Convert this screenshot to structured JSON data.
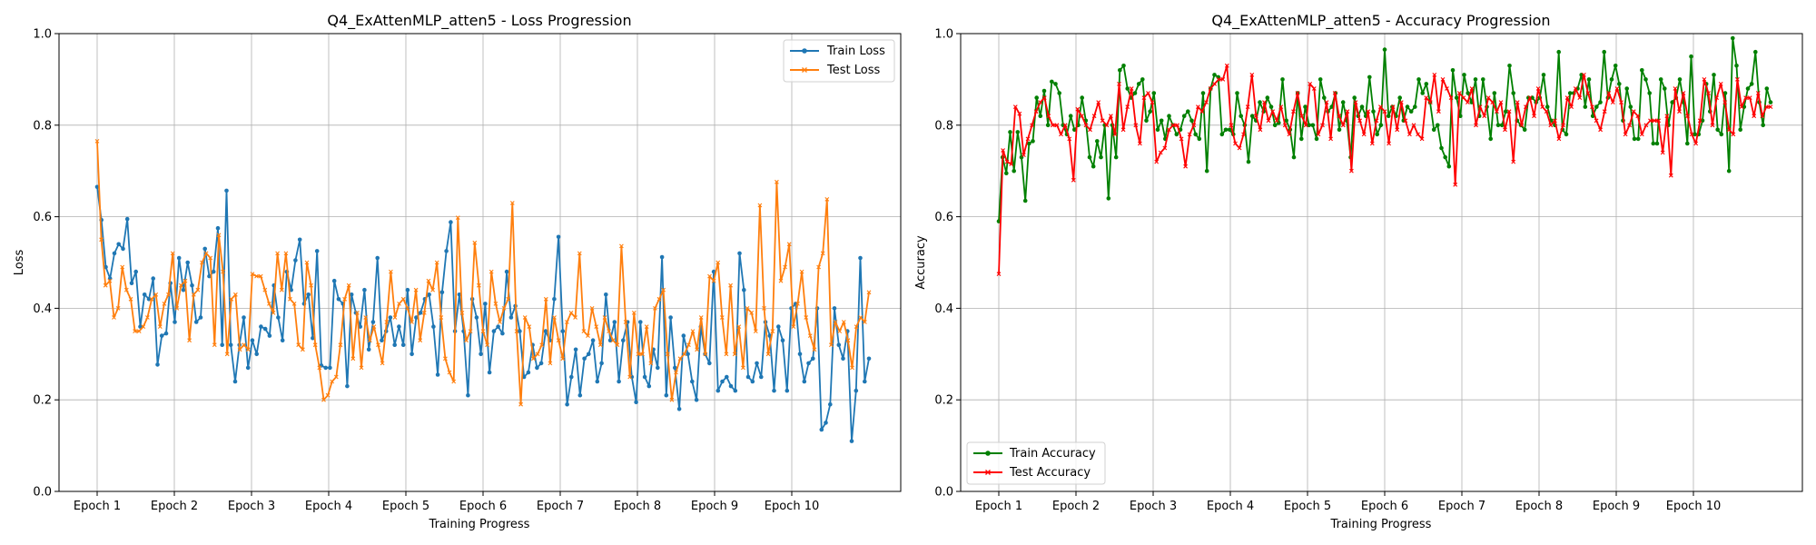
{
  "colors": {
    "train_loss": "#1f77b4",
    "test_loss": "#ff7f0e",
    "train_acc": "#008000",
    "test_acc": "#ff0000",
    "grid": "#b0b0b0"
  },
  "chart_data": [
    {
      "type": "line",
      "title": "Q4_ExAttenMLP_atten5 - Loss Progression",
      "xlabel": "Training Progress",
      "ylabel": "Loss",
      "ylim": [
        0.0,
        1.0
      ],
      "yticks": [
        "0.0",
        "0.2",
        "0.4",
        "0.6",
        "0.8",
        "1.0"
      ],
      "xticks": [
        "Epoch 1",
        "Epoch 2",
        "Epoch 3",
        "Epoch 4",
        "Epoch 5",
        "Epoch 6",
        "Epoch 7",
        "Epoch 8",
        "Epoch 9",
        "Epoch 10"
      ],
      "legend_position": "top-right",
      "grid": true,
      "series": [
        {
          "name": "Train Loss",
          "color": "#1f77b4",
          "marker": "circle",
          "values": [
            0.665,
            0.593,
            0.49,
            0.465,
            0.52,
            0.54,
            0.53,
            0.595,
            0.455,
            0.48,
            0.36,
            0.43,
            0.42,
            0.465,
            0.277,
            0.34,
            0.345,
            0.455,
            0.37,
            0.51,
            0.44,
            0.5,
            0.45,
            0.37,
            0.38,
            0.53,
            0.47,
            0.48,
            0.575,
            0.32,
            0.657,
            0.32,
            0.24,
            0.32,
            0.38,
            0.27,
            0.33,
            0.3,
            0.36,
            0.355,
            0.34,
            0.45,
            0.38,
            0.33,
            0.48,
            0.44,
            0.505,
            0.55,
            0.41,
            0.43,
            0.335,
            0.525,
            0.275,
            0.27,
            0.27,
            0.46,
            0.42,
            0.41,
            0.23,
            0.43,
            0.39,
            0.36,
            0.44,
            0.31,
            0.37,
            0.51,
            0.33,
            0.35,
            0.38,
            0.32,
            0.36,
            0.32,
            0.44,
            0.3,
            0.38,
            0.39,
            0.42,
            0.43,
            0.36,
            0.255,
            0.435,
            0.525,
            0.588,
            0.35,
            0.43,
            0.35,
            0.21,
            0.42,
            0.38,
            0.3,
            0.41,
            0.26,
            0.35,
            0.36,
            0.345,
            0.48,
            0.38,
            0.405,
            0.35,
            0.25,
            0.26,
            0.32,
            0.27,
            0.28,
            0.35,
            0.33,
            0.42,
            0.556,
            0.35,
            0.19,
            0.25,
            0.31,
            0.21,
            0.29,
            0.3,
            0.33,
            0.24,
            0.28,
            0.43,
            0.33,
            0.37,
            0.24,
            0.33,
            0.37,
            0.25,
            0.195,
            0.37,
            0.25,
            0.23,
            0.31,
            0.27,
            0.512,
            0.21,
            0.38,
            0.27,
            0.18,
            0.34,
            0.3,
            0.24,
            0.2,
            0.36,
            0.3,
            0.28,
            0.48,
            0.22,
            0.24,
            0.25,
            0.23,
            0.22,
            0.52,
            0.44,
            0.25,
            0.24,
            0.28,
            0.25,
            0.37,
            0.34,
            0.22,
            0.36,
            0.33,
            0.22,
            0.4,
            0.41,
            0.3,
            0.24,
            0.28,
            0.29,
            0.4,
            0.135,
            0.15,
            0.19,
            0.4,
            0.32,
            0.29,
            0.35,
            0.11,
            0.22,
            0.51,
            0.24,
            0.29
          ]
        },
        {
          "name": "Test Loss",
          "color": "#ff7f0e",
          "marker": "x",
          "values": [
            0.765,
            0.55,
            0.45,
            0.46,
            0.38,
            0.4,
            0.49,
            0.44,
            0.42,
            0.35,
            0.35,
            0.36,
            0.38,
            0.42,
            0.43,
            0.36,
            0.41,
            0.43,
            0.52,
            0.4,
            0.45,
            0.46,
            0.33,
            0.43,
            0.44,
            0.5,
            0.52,
            0.51,
            0.32,
            0.56,
            0.48,
            0.3,
            0.42,
            0.43,
            0.31,
            0.32,
            0.31,
            0.475,
            0.47,
            0.47,
            0.44,
            0.41,
            0.39,
            0.52,
            0.44,
            0.52,
            0.42,
            0.41,
            0.32,
            0.31,
            0.5,
            0.45,
            0.32,
            0.27,
            0.2,
            0.21,
            0.24,
            0.25,
            0.32,
            0.42,
            0.45,
            0.29,
            0.39,
            0.27,
            0.38,
            0.33,
            0.36,
            0.32,
            0.28,
            0.37,
            0.48,
            0.38,
            0.41,
            0.42,
            0.4,
            0.37,
            0.44,
            0.33,
            0.39,
            0.46,
            0.44,
            0.5,
            0.38,
            0.29,
            0.26,
            0.24,
            0.598,
            0.39,
            0.33,
            0.35,
            0.543,
            0.45,
            0.35,
            0.32,
            0.48,
            0.41,
            0.37,
            0.4,
            0.42,
            0.63,
            0.35,
            0.19,
            0.38,
            0.36,
            0.29,
            0.3,
            0.32,
            0.42,
            0.28,
            0.38,
            0.33,
            0.29,
            0.37,
            0.39,
            0.38,
            0.52,
            0.35,
            0.34,
            0.4,
            0.36,
            0.32,
            0.38,
            0.35,
            0.33,
            0.32,
            0.536,
            0.37,
            0.25,
            0.39,
            0.3,
            0.3,
            0.36,
            0.28,
            0.4,
            0.42,
            0.44,
            0.3,
            0.2,
            0.26,
            0.29,
            0.3,
            0.32,
            0.35,
            0.31,
            0.38,
            0.3,
            0.47,
            0.46,
            0.5,
            0.38,
            0.3,
            0.45,
            0.3,
            0.36,
            0.27,
            0.4,
            0.39,
            0.35,
            0.625,
            0.4,
            0.3,
            0.35,
            0.676,
            0.46,
            0.49,
            0.54,
            0.36,
            0.41,
            0.48,
            0.38,
            0.34,
            0.31,
            0.49,
            0.52,
            0.638,
            0.32,
            0.37,
            0.35,
            0.37,
            0.33,
            0.27,
            0.36,
            0.38,
            0.37,
            0.435
          ]
        }
      ]
    },
    {
      "type": "line",
      "title": "Q4_ExAttenMLP_atten5 - Accuracy Progression",
      "xlabel": "Training Progress",
      "ylabel": "Accuracy",
      "ylim": [
        0.0,
        1.0
      ],
      "yticks": [
        "0.0",
        "0.2",
        "0.4",
        "0.6",
        "0.8",
        "1.0"
      ],
      "xticks": [
        "Epoch 1",
        "Epoch 2",
        "Epoch 3",
        "Epoch 4",
        "Epoch 5",
        "Epoch 6",
        "Epoch 7",
        "Epoch 8",
        "Epoch 9",
        "Epoch 10"
      ],
      "legend_position": "bottom-left",
      "grid": true,
      "series": [
        {
          "name": "Train Accuracy",
          "color": "#008000",
          "marker": "circle",
          "values": [
            0.59,
            0.73,
            0.695,
            0.785,
            0.7,
            0.785,
            0.73,
            0.635,
            0.76,
            0.765,
            0.86,
            0.82,
            0.875,
            0.8,
            0.895,
            0.89,
            0.87,
            0.8,
            0.78,
            0.82,
            0.79,
            0.8,
            0.86,
            0.81,
            0.73,
            0.71,
            0.765,
            0.73,
            0.8,
            0.64,
            0.8,
            0.73,
            0.92,
            0.93,
            0.88,
            0.86,
            0.87,
            0.89,
            0.9,
            0.81,
            0.83,
            0.87,
            0.79,
            0.81,
            0.77,
            0.82,
            0.8,
            0.78,
            0.79,
            0.82,
            0.83,
            0.81,
            0.78,
            0.77,
            0.87,
            0.7,
            0.88,
            0.91,
            0.905,
            0.78,
            0.79,
            0.79,
            0.78,
            0.87,
            0.82,
            0.8,
            0.72,
            0.82,
            0.81,
            0.85,
            0.83,
            0.86,
            0.84,
            0.8,
            0.805,
            0.9,
            0.81,
            0.79,
            0.73,
            0.87,
            0.77,
            0.84,
            0.8,
            0.8,
            0.77,
            0.9,
            0.86,
            0.83,
            0.84,
            0.87,
            0.79,
            0.85,
            0.81,
            0.73,
            0.86,
            0.82,
            0.84,
            0.82,
            0.905,
            0.83,
            0.78,
            0.8,
            0.965,
            0.82,
            0.84,
            0.82,
            0.86,
            0.81,
            0.84,
            0.83,
            0.84,
            0.9,
            0.87,
            0.89,
            0.85,
            0.79,
            0.8,
            0.75,
            0.73,
            0.71,
            0.92,
            0.86,
            0.82,
            0.91,
            0.87,
            0.85,
            0.9,
            0.82,
            0.9,
            0.84,
            0.77,
            0.87,
            0.8,
            0.8,
            0.83,
            0.93,
            0.87,
            0.81,
            0.8,
            0.79,
            0.86,
            0.86,
            0.85,
            0.86,
            0.91,
            0.84,
            0.81,
            0.8,
            0.96,
            0.79,
            0.78,
            0.87,
            0.87,
            0.88,
            0.91,
            0.84,
            0.9,
            0.82,
            0.84,
            0.85,
            0.96,
            0.86,
            0.9,
            0.93,
            0.89,
            0.81,
            0.88,
            0.84,
            0.77,
            0.77,
            0.92,
            0.9,
            0.87,
            0.76,
            0.76,
            0.9,
            0.88,
            0.8,
            0.85,
            0.86,
            0.9,
            0.85,
            0.76,
            0.95,
            0.78,
            0.78,
            0.81,
            0.89,
            0.83,
            0.91,
            0.79,
            0.78,
            0.87,
            0.7,
            0.99,
            0.93,
            0.79,
            0.84,
            0.88,
            0.89,
            0.96,
            0.85,
            0.8,
            0.88,
            0.85
          ]
        },
        {
          "name": "Test Accuracy",
          "color": "#ff0000",
          "marker": "x",
          "values": [
            0.475,
            0.745,
            0.72,
            0.715,
            0.84,
            0.825,
            0.735,
            0.77,
            0.8,
            0.83,
            0.85,
            0.86,
            0.82,
            0.8,
            0.8,
            0.78,
            0.8,
            0.77,
            0.68,
            0.835,
            0.82,
            0.8,
            0.79,
            0.82,
            0.85,
            0.81,
            0.8,
            0.82,
            0.78,
            0.89,
            0.79,
            0.84,
            0.88,
            0.8,
            0.76,
            0.86,
            0.87,
            0.85,
            0.72,
            0.74,
            0.75,
            0.79,
            0.8,
            0.8,
            0.77,
            0.71,
            0.78,
            0.8,
            0.84,
            0.83,
            0.85,
            0.88,
            0.89,
            0.9,
            0.9,
            0.93,
            0.8,
            0.76,
            0.75,
            0.78,
            0.84,
            0.91,
            0.82,
            0.79,
            0.85,
            0.81,
            0.83,
            0.81,
            0.84,
            0.8,
            0.78,
            0.83,
            0.87,
            0.82,
            0.8,
            0.89,
            0.88,
            0.78,
            0.8,
            0.85,
            0.77,
            0.87,
            0.82,
            0.8,
            0.83,
            0.7,
            0.85,
            0.81,
            0.78,
            0.83,
            0.76,
            0.81,
            0.84,
            0.83,
            0.76,
            0.84,
            0.79,
            0.85,
            0.81,
            0.78,
            0.8,
            0.78,
            0.77,
            0.86,
            0.85,
            0.91,
            0.83,
            0.9,
            0.88,
            0.86,
            0.67,
            0.87,
            0.86,
            0.85,
            0.88,
            0.8,
            0.84,
            0.82,
            0.86,
            0.85,
            0.83,
            0.85,
            0.79,
            0.83,
            0.72,
            0.85,
            0.8,
            0.84,
            0.86,
            0.82,
            0.88,
            0.84,
            0.83,
            0.8,
            0.81,
            0.77,
            0.8,
            0.86,
            0.84,
            0.88,
            0.86,
            0.91,
            0.87,
            0.84,
            0.81,
            0.79,
            0.83,
            0.87,
            0.85,
            0.88,
            0.85,
            0.78,
            0.8,
            0.83,
            0.82,
            0.78,
            0.8,
            0.81,
            0.81,
            0.81,
            0.74,
            0.82,
            0.69,
            0.88,
            0.83,
            0.87,
            0.82,
            0.78,
            0.76,
            0.81,
            0.9,
            0.87,
            0.8,
            0.86,
            0.89,
            0.85,
            0.79,
            0.78,
            0.9,
            0.84,
            0.86,
            0.86,
            0.82,
            0.87,
            0.82,
            0.84,
            0.84
          ]
        }
      ]
    }
  ]
}
